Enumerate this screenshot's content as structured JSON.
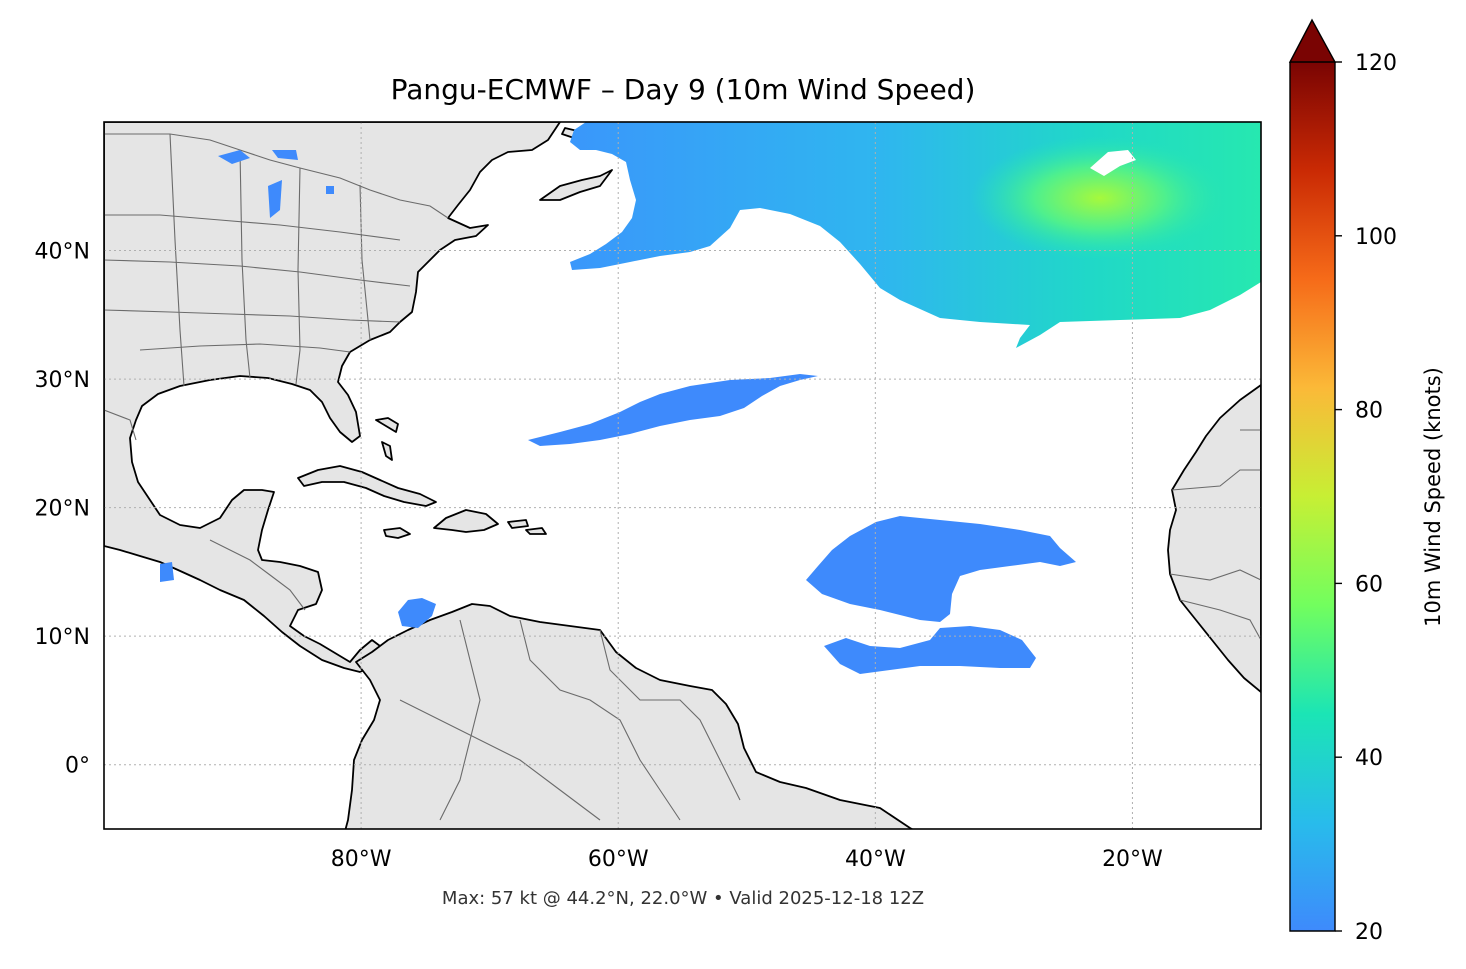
{
  "map": {
    "title": "Pangu-ECMWF – Day 9 (10m Wind Speed)",
    "footnote": "Max: 57 kt @ 44.2°N, 22.0°W • Valid 2025-12-18 12Z",
    "extent": {
      "lon": [
        -100,
        -10
      ],
      "lat": [
        -5,
        50
      ]
    },
    "lon_ticks": [
      {
        "value": -80,
        "label": "80°W"
      },
      {
        "value": -60,
        "label": "60°W"
      },
      {
        "value": -40,
        "label": "40°W"
      },
      {
        "value": -20,
        "label": "20°W"
      }
    ],
    "lat_ticks": [
      {
        "value": 0,
        "label": "0°"
      },
      {
        "value": 10,
        "label": "10°N"
      },
      {
        "value": 20,
        "label": "20°N"
      },
      {
        "value": 30,
        "label": "30°N"
      },
      {
        "value": 40,
        "label": "40°N"
      }
    ],
    "gridlines": true,
    "land_color": "#e5e5e5",
    "coast_color": "#000000",
    "border_color": "#6b6b6b"
  },
  "colorbar": {
    "label": "10m Wind Speed (knots)",
    "min": 20,
    "max": 120,
    "ticks": [
      20,
      40,
      60,
      80,
      100,
      120
    ],
    "extend": "max",
    "colormap": "turbo",
    "stops": [
      "#3e8afc",
      "#28bceb",
      "#1be5b5",
      "#72fe5e",
      "#c7ef34",
      "#fbb938",
      "#f66b19",
      "#ca2a04",
      "#7a0403"
    ]
  }
}
